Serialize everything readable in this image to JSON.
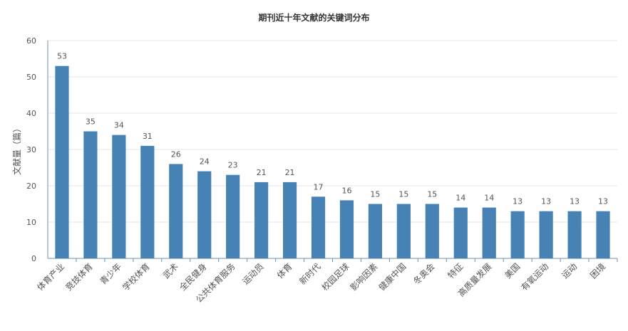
{
  "colors": {
    "bar": "#4682b4",
    "axis": "#6d8fb5",
    "grid": "#e6e6e6",
    "text": "#555555",
    "title": "#333333"
  },
  "chart_data": {
    "type": "bar",
    "title": "期刊近十年文献的关键词分布",
    "xlabel": "",
    "ylabel": "文献量（篇）",
    "ylim": [
      0,
      60
    ],
    "yticks": [
      0,
      10,
      20,
      30,
      40,
      50,
      60
    ],
    "grid": true,
    "data_labels": true,
    "categories": [
      "体育产业",
      "竞技体育",
      "青少年",
      "学校体育",
      "武术",
      "全民健身",
      "公共体育服务",
      "运动员",
      "体育",
      "新时代",
      "校园足球",
      "影响因素",
      "健康中国",
      "冬奥会",
      "特征",
      "高质量发展",
      "美国",
      "有氧运动",
      "运动",
      "困境"
    ],
    "values": [
      53,
      35,
      34,
      31,
      26,
      24,
      23,
      21,
      21,
      17,
      16,
      15,
      15,
      15,
      14,
      14,
      13,
      13,
      13,
      13
    ]
  }
}
